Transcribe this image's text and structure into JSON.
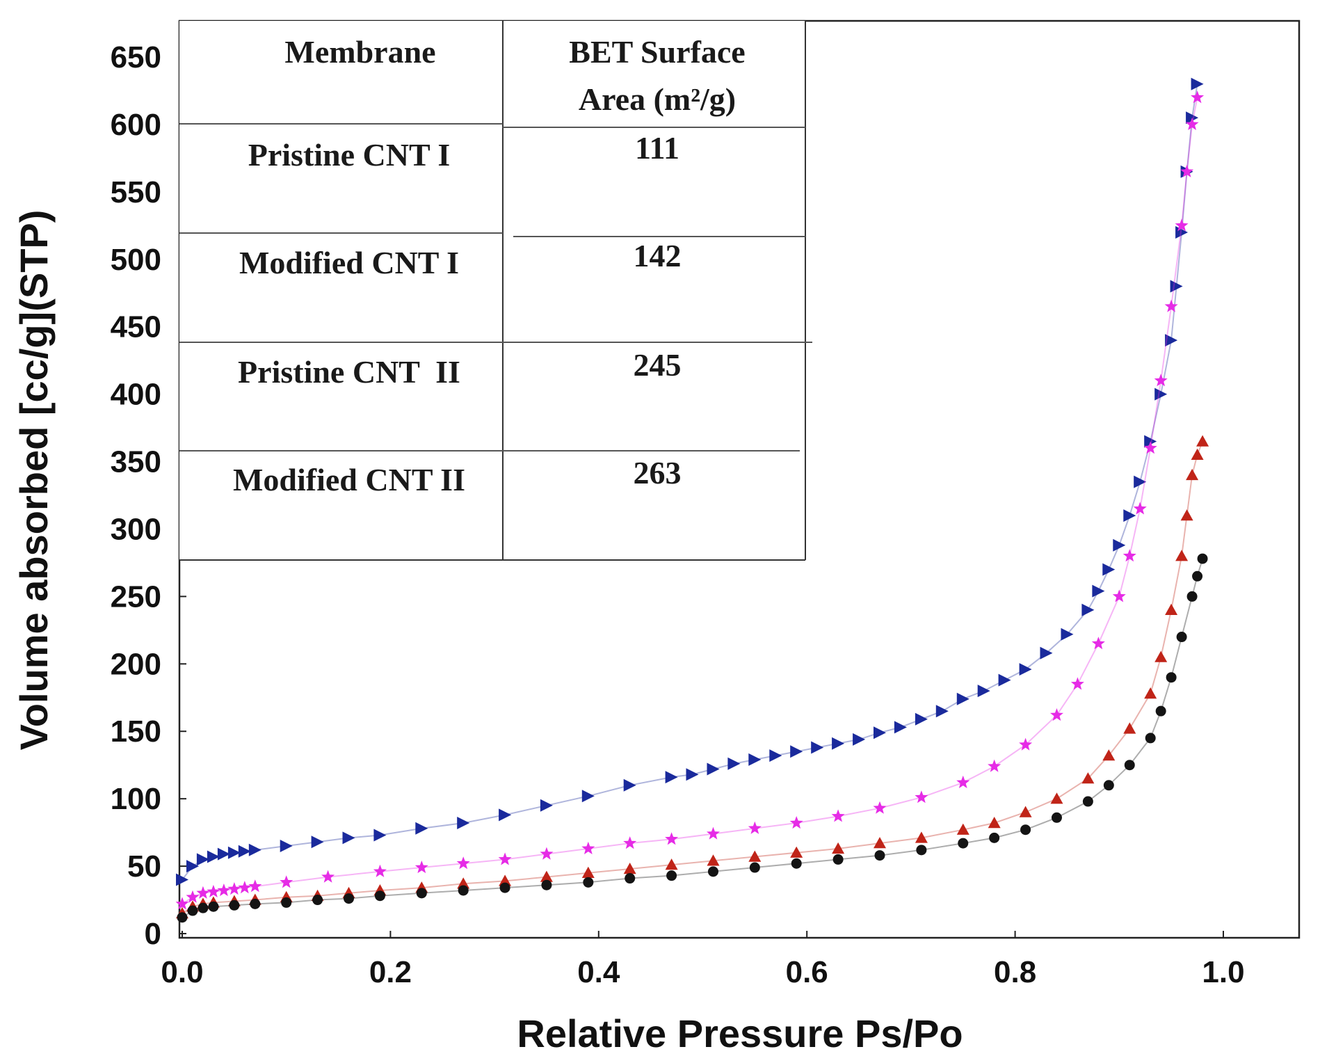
{
  "chart_data": {
    "type": "scatter",
    "title": "",
    "xlabel": "Relative Pressure Ps/Po",
    "ylabel": "Volume absorbed [cc/g](STP)",
    "xlim": [
      0,
      1.1
    ],
    "ylim": [
      0,
      650
    ],
    "xticks": [
      "0.0",
      "0.2",
      "0.4",
      "0.6",
      "0.8",
      "1.0"
    ],
    "xtick_values": [
      0,
      0.2,
      0.4,
      0.6,
      0.8,
      1.0
    ],
    "yticks": [
      "0",
      "50",
      "100",
      "150",
      "200",
      "250",
      "300",
      "350",
      "400",
      "450",
      "500",
      "550",
      "600",
      "650"
    ],
    "ytick_values": [
      0,
      50,
      100,
      150,
      200,
      250,
      300,
      350,
      400,
      450,
      500,
      550,
      600,
      650
    ],
    "grid": false,
    "legend": "none",
    "series": [
      {
        "name": "Modified CNT II",
        "color": "#1a2a9c",
        "marker": "triangle-right",
        "x": [
          0.0,
          0.01,
          0.02,
          0.03,
          0.04,
          0.05,
          0.06,
          0.07,
          0.1,
          0.13,
          0.16,
          0.19,
          0.23,
          0.27,
          0.31,
          0.35,
          0.39,
          0.43,
          0.47,
          0.49,
          0.51,
          0.53,
          0.55,
          0.57,
          0.59,
          0.61,
          0.63,
          0.65,
          0.67,
          0.69,
          0.71,
          0.73,
          0.75,
          0.77,
          0.79,
          0.81,
          0.83,
          0.85,
          0.87,
          0.88,
          0.89,
          0.9,
          0.91,
          0.92,
          0.93,
          0.94,
          0.95,
          0.955,
          0.96,
          0.965,
          0.97,
          0.975
        ],
        "y": [
          40,
          50,
          55,
          57,
          59,
          60,
          61,
          62,
          65,
          68,
          71,
          73,
          78,
          82,
          88,
          95,
          102,
          110,
          116,
          118,
          122,
          126,
          129,
          132,
          135,
          138,
          141,
          144,
          149,
          153,
          159,
          165,
          174,
          180,
          188,
          196,
          208,
          222,
          240,
          254,
          270,
          288,
          310,
          335,
          365,
          400,
          440,
          480,
          520,
          565,
          605,
          630
        ]
      },
      {
        "name": "Pristine CNT II",
        "color": "#e62be6",
        "marker": "star",
        "x": [
          0.0,
          0.01,
          0.02,
          0.03,
          0.04,
          0.05,
          0.06,
          0.07,
          0.1,
          0.14,
          0.19,
          0.23,
          0.27,
          0.31,
          0.35,
          0.39,
          0.43,
          0.47,
          0.51,
          0.55,
          0.59,
          0.63,
          0.67,
          0.71,
          0.75,
          0.78,
          0.81,
          0.84,
          0.86,
          0.88,
          0.9,
          0.91,
          0.92,
          0.93,
          0.94,
          0.95,
          0.96,
          0.965,
          0.97,
          0.975
        ],
        "y": [
          22,
          27,
          30,
          31,
          32,
          33,
          34,
          35,
          38,
          42,
          46,
          49,
          52,
          55,
          59,
          63,
          67,
          70,
          74,
          78,
          82,
          87,
          93,
          101,
          112,
          124,
          140,
          162,
          185,
          215,
          250,
          280,
          315,
          360,
          410,
          465,
          525,
          565,
          600,
          620
        ]
      },
      {
        "name": "Modified CNT I",
        "color": "#c02418",
        "marker": "triangle",
        "x": [
          0.0,
          0.01,
          0.02,
          0.03,
          0.05,
          0.07,
          0.1,
          0.13,
          0.16,
          0.19,
          0.23,
          0.27,
          0.31,
          0.35,
          0.39,
          0.43,
          0.47,
          0.51,
          0.55,
          0.59,
          0.63,
          0.67,
          0.71,
          0.75,
          0.78,
          0.81,
          0.84,
          0.87,
          0.89,
          0.91,
          0.93,
          0.94,
          0.95,
          0.96,
          0.965,
          0.97,
          0.975,
          0.98
        ],
        "y": [
          15,
          20,
          22,
          23,
          24,
          25,
          27,
          28,
          30,
          32,
          34,
          37,
          39,
          42,
          45,
          48,
          51,
          54,
          57,
          60,
          63,
          67,
          71,
          77,
          82,
          90,
          100,
          115,
          132,
          152,
          178,
          205,
          240,
          280,
          310,
          340,
          355,
          365
        ]
      },
      {
        "name": "Pristine CNT I",
        "color": "#141414",
        "marker": "circle",
        "x": [
          0.0,
          0.01,
          0.02,
          0.03,
          0.05,
          0.07,
          0.1,
          0.13,
          0.16,
          0.19,
          0.23,
          0.27,
          0.31,
          0.35,
          0.39,
          0.43,
          0.47,
          0.51,
          0.55,
          0.59,
          0.63,
          0.67,
          0.71,
          0.75,
          0.78,
          0.81,
          0.84,
          0.87,
          0.89,
          0.91,
          0.93,
          0.94,
          0.95,
          0.96,
          0.97,
          0.975,
          0.98
        ],
        "y": [
          12,
          17,
          19,
          20,
          21,
          22,
          23,
          25,
          26,
          28,
          30,
          32,
          34,
          36,
          38,
          41,
          43,
          46,
          49,
          52,
          55,
          58,
          62,
          67,
          71,
          77,
          86,
          98,
          110,
          125,
          145,
          165,
          190,
          220,
          250,
          265,
          278
        ]
      }
    ],
    "inset_table": {
      "header": [
        "Membrane",
        "BET Surface",
        "Area (m²/g)"
      ],
      "rows": [
        {
          "membrane": "Pristine CNT I",
          "area": "111"
        },
        {
          "membrane": "Modified CNT I",
          "area": "142"
        },
        {
          "membrane": "Pristine CNT  II",
          "area": "245"
        },
        {
          "membrane": "Modified CNT II",
          "area": "263"
        }
      ]
    }
  }
}
